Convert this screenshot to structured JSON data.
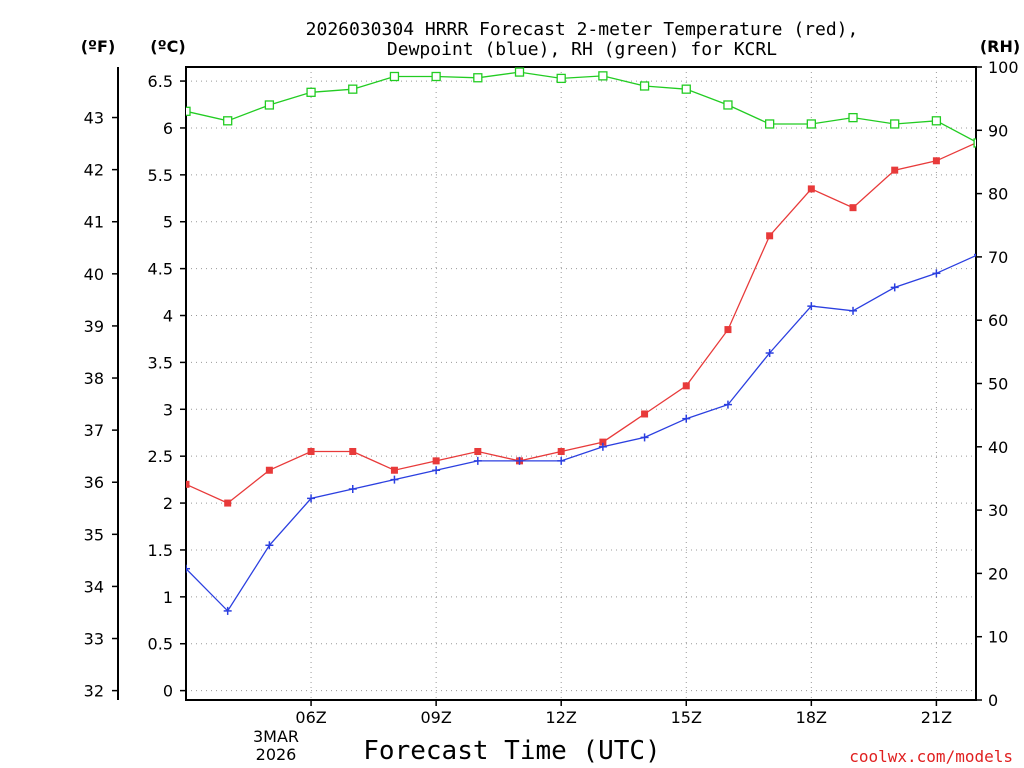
{
  "chart_data": {
    "type": "line",
    "title_line1": "2026030304 HRRR Forecast 2-meter Temperature (red),",
    "title_line2": "Dewpoint (blue), RH (green) for KCRL",
    "xlabel": "Forecast Time (UTC)",
    "credit": "coolwx.com/models",
    "unit_f": "(ºF)",
    "unit_c": "(ºC)",
    "unit_rh": "(RH)",
    "x_hours": [
      3,
      4,
      5,
      6,
      7,
      8,
      9,
      10,
      11,
      12,
      13,
      14,
      15,
      16,
      17,
      18,
      19,
      20,
      21,
      22
    ],
    "xlim": [
      3,
      21.95
    ],
    "x_ticks": [
      {
        "hour": 6,
        "label": "06Z"
      },
      {
        "hour": 9,
        "label": "09Z"
      },
      {
        "hour": 12,
        "label": "12Z"
      },
      {
        "hour": 15,
        "label": "15Z"
      },
      {
        "hour": 18,
        "label": "18Z"
      },
      {
        "hour": 21,
        "label": "21Z"
      }
    ],
    "date_line1": "3MAR",
    "date_line2": "2026",
    "ylim_c": [
      -0.1,
      6.65
    ],
    "y_ticks_c": [
      "0",
      "0.5",
      "1",
      "1.5",
      "2",
      "2.5",
      "3",
      "3.5",
      "4",
      "4.5",
      "5",
      "5.5",
      "6",
      "6.5"
    ],
    "y_ticks_f": [
      "32",
      "33",
      "34",
      "35",
      "36",
      "37",
      "38",
      "39",
      "40",
      "41",
      "42",
      "43"
    ],
    "y_ticks_rh": [
      "0",
      "10",
      "20",
      "30",
      "40",
      "50",
      "60",
      "70",
      "80",
      "90",
      "100"
    ],
    "series": [
      {
        "name": "Temperature",
        "units": "C",
        "color": "#e83a3a",
        "marker": "filled-square",
        "values": [
          2.2,
          2.0,
          2.35,
          2.55,
          2.55,
          2.35,
          2.45,
          2.55,
          2.45,
          2.55,
          2.65,
          2.95,
          3.25,
          3.85,
          4.85,
          5.35,
          5.15,
          5.55,
          5.65,
          5.85
        ]
      },
      {
        "name": "Dewpoint",
        "units": "C",
        "color": "#2b3fe0",
        "marker": "plus",
        "values": [
          1.3,
          0.85,
          1.55,
          2.05,
          2.15,
          2.25,
          2.35,
          2.45,
          2.45,
          2.45,
          2.6,
          2.7,
          2.9,
          3.05,
          3.6,
          4.1,
          4.05,
          4.3,
          4.45,
          4.65
        ]
      },
      {
        "name": "RH",
        "units": "%",
        "color": "#22cc22",
        "marker": "open-square",
        "values": [
          93,
          91.5,
          94,
          96,
          96.5,
          98.5,
          98.5,
          98.3,
          99.2,
          98.2,
          98.6,
          97,
          96.5,
          94,
          91,
          91,
          92,
          91,
          91.5,
          88
        ]
      }
    ]
  }
}
